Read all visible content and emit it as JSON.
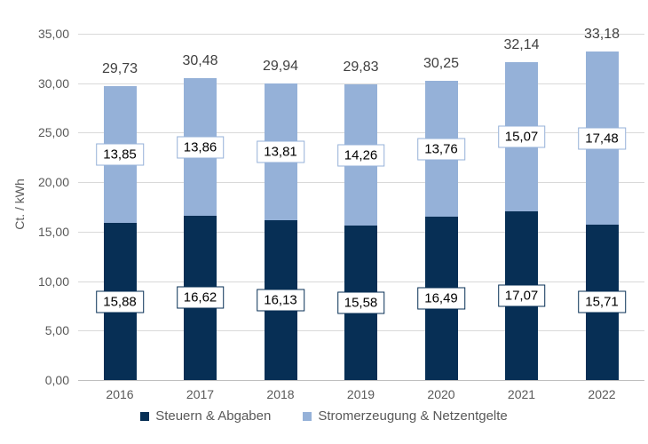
{
  "chart_data": {
    "type": "bar",
    "stacked": true,
    "title": "",
    "xlabel": "",
    "ylabel": "Ct. / kWh",
    "ylim": [
      0,
      35
    ],
    "ytick_step": 5,
    "ytick_labels": [
      "0,00",
      "5,00",
      "10,00",
      "15,00",
      "20,00",
      "25,00",
      "30,00",
      "35,00"
    ],
    "grid": true,
    "legend_position": "bottom",
    "categories": [
      "2016",
      "2017",
      "2018",
      "2019",
      "2020",
      "2021",
      "2022"
    ],
    "series": [
      {
        "name": "Steuern & Abgaben",
        "key": "steuern",
        "color": "#072f55",
        "values": [
          15.88,
          16.62,
          16.13,
          15.58,
          16.49,
          17.07,
          15.71
        ],
        "labels": [
          "15,88",
          "16,62",
          "16,13",
          "15,58",
          "16,49",
          "17,07",
          "15,71"
        ]
      },
      {
        "name": "Stromerzeugung & Netzentgelte",
        "key": "strom",
        "color": "#95b1d8",
        "values": [
          13.85,
          13.86,
          13.81,
          14.26,
          13.76,
          15.07,
          17.48
        ],
        "labels": [
          "13,85",
          "13,86",
          "13,81",
          "14,26",
          "13,76",
          "15,07",
          "17,48"
        ]
      }
    ],
    "totals": [
      29.73,
      30.48,
      29.94,
      29.83,
      30.25,
      32.14,
      33.18
    ],
    "total_labels": [
      "29,73",
      "30,48",
      "29,94",
      "29,83",
      "30,25",
      "32,14",
      "33,18"
    ]
  },
  "colors": {
    "grid": "#d9d9d9",
    "axis": "#bfbfbf",
    "axis_text": "#595959",
    "total_label_text": "#404040",
    "segment_label_text": "#000000",
    "background": "#ffffff"
  }
}
